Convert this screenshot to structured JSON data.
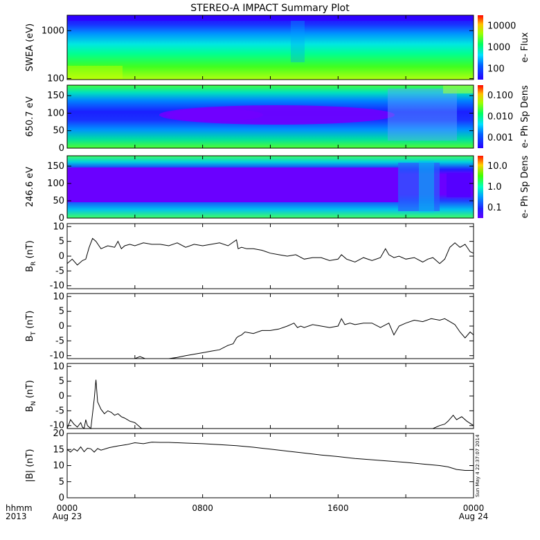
{
  "title": "STEREO-A IMPACT Summary Plot",
  "timestamp": "Sun May  4 22:37:07 2014",
  "x_axis": {
    "row1_label": "hhmm",
    "row2_label": "2013",
    "ticks": [
      {
        "hour": 0,
        "time": "0000",
        "date": "Aug 23"
      },
      {
        "hour": 8,
        "time": "0800",
        "date": ""
      },
      {
        "hour": 16,
        "time": "1600",
        "date": ""
      },
      {
        "hour": 24,
        "time": "0000",
        "date": "Aug 24"
      }
    ]
  },
  "chart_data": [
    {
      "type": "heatmap",
      "name": "swea",
      "ylabel": "SWEA (eV)",
      "ylog": true,
      "ylim": [
        95,
        2100
      ],
      "yticks": [
        {
          "v": 100,
          "l": "100"
        },
        {
          "v": 1000,
          "l": "1000"
        }
      ],
      "colorbar_label": "e- Flux",
      "colorbar_ticks": [
        "100",
        "1000",
        "10000"
      ],
      "colorbar_colors": [
        "#2000ff",
        "#00ffff",
        "#00ff00",
        "#ffff00",
        "#ff0000"
      ],
      "color_stops": [
        "#3a00ff",
        "#00c8ff",
        "#00ff80",
        "#b0ff00"
      ],
      "description_levels": "blue at high energies, cyan-green mid, green-yellow low"
    },
    {
      "type": "heatmap",
      "name": "pad-650",
      "ylabel": "650.7 eV",
      "ylim": [
        0,
        180
      ],
      "yticks": [
        {
          "v": 0,
          "l": "0"
        },
        {
          "v": 50,
          "l": "50"
        },
        {
          "v": 100,
          "l": "100"
        },
        {
          "v": 150,
          "l": "150"
        }
      ],
      "colorbar_label": "e- Ph Sp Dens",
      "colorbar_ticks": [
        "0.001",
        "0.010",
        "0.100"
      ]
    },
    {
      "type": "heatmap",
      "name": "pad-246",
      "ylabel": "246.6 eV",
      "ylim": [
        0,
        180
      ],
      "yticks": [
        {
          "v": 0,
          "l": "0"
        },
        {
          "v": 50,
          "l": "50"
        },
        {
          "v": 100,
          "l": "100"
        },
        {
          "v": 150,
          "l": "150"
        }
      ],
      "colorbar_label": "e- Ph Sp Dens",
      "colorbar_ticks": [
        "0.1",
        "1.0",
        "10.0"
      ]
    },
    {
      "type": "line",
      "name": "br",
      "ylabel": "B",
      "ysub": "R",
      "yunit": " (nT)",
      "ylim": [
        -11,
        11
      ],
      "yticks": [
        -10,
        -5,
        0,
        5,
        10
      ],
      "x": [
        0,
        0.3,
        0.6,
        0.9,
        1.1,
        1.3,
        1.5,
        1.7,
        2.0,
        2.4,
        2.8,
        3.0,
        3.2,
        3.4,
        3.7,
        4.0,
        4.5,
        5.0,
        5.5,
        6.0,
        6.5,
        7.0,
        7.5,
        8.0,
        8.5,
        9.0,
        9.5,
        10.0,
        10.1,
        10.3,
        10.6,
        11.0,
        11.5,
        12.0,
        12.5,
        13.0,
        13.5,
        14.0,
        14.5,
        15.0,
        15.5,
        16.0,
        16.2,
        16.5,
        17.0,
        17.5,
        18.0,
        18.5,
        18.8,
        19.0,
        19.3,
        19.6,
        20.0,
        20.5,
        21.0,
        21.3,
        21.6,
        22.0,
        22.3,
        22.6,
        22.9,
        23.2,
        23.5,
        23.8,
        24.0
      ],
      "y": [
        -2.5,
        -1.0,
        -3.0,
        -1.5,
        -1.0,
        3.0,
        6.0,
        5.0,
        2.5,
        3.5,
        3.0,
        5.0,
        2.5,
        3.5,
        4.0,
        3.5,
        4.5,
        4.0,
        4.0,
        3.5,
        4.5,
        3.0,
        4.0,
        3.5,
        4.0,
        4.5,
        3.5,
        5.5,
        2.5,
        3.0,
        2.5,
        2.5,
        2.0,
        1.0,
        0.5,
        0.0,
        0.5,
        -1.0,
        -0.5,
        -0.5,
        -1.5,
        -1.0,
        0.5,
        -1.0,
        -2.0,
        -0.5,
        -1.5,
        -0.5,
        2.5,
        0.5,
        -0.5,
        0.0,
        -1.0,
        -0.5,
        -2.0,
        -1.0,
        -0.5,
        -2.5,
        -1.0,
        3.0,
        4.5,
        3.0,
        4.0,
        1.5,
        1.0
      ]
    },
    {
      "type": "line",
      "name": "bt",
      "ylabel": "B",
      "ysub": "T",
      "yunit": " (nT)",
      "ylim": [
        -11,
        11
      ],
      "yticks": [
        -10,
        -5,
        0,
        5,
        10
      ],
      "x": [
        0,
        1,
        2,
        3,
        4,
        4.3,
        4.6,
        5,
        6,
        6.5,
        7,
        7.5,
        8,
        8.5,
        9,
        9.5,
        9.8,
        10.0,
        10.1,
        10.3,
        10.5,
        11,
        11.5,
        12,
        12.5,
        13,
        13.4,
        13.6,
        13.8,
        14,
        14.5,
        15,
        15.5,
        16,
        16.2,
        16.4,
        16.7,
        17,
        17.5,
        18,
        18.5,
        19,
        19.3,
        19.6,
        20,
        20.5,
        21,
        21.5,
        22,
        22.3,
        22.6,
        22.9,
        23.2,
        23.5,
        23.8,
        24
      ],
      "y": [
        -11,
        -11,
        -11,
        -11,
        -11,
        -10.3,
        -11,
        -11,
        -11,
        -10.6,
        -10,
        -9.5,
        -9,
        -8.5,
        -8,
        -6.5,
        -6,
        -4,
        -3.5,
        -3,
        -2,
        -2.5,
        -1.5,
        -1.5,
        -1,
        0,
        1,
        -0.5,
        0,
        -0.5,
        0.5,
        0,
        -0.5,
        0,
        2.5,
        0.5,
        1,
        0.5,
        1,
        1,
        -0.5,
        1,
        -3,
        0,
        1,
        2,
        1.5,
        2.5,
        2,
        2.5,
        1.5,
        0.5,
        -2,
        -4,
        -2,
        -3
      ]
    },
    {
      "type": "line",
      "name": "bn",
      "ylabel": "B",
      "ysub": "N",
      "yunit": " (nT)",
      "ylim": [
        -11,
        11
      ],
      "yticks": [
        -10,
        -5,
        0,
        5,
        10
      ],
      "x": [
        0,
        0.2,
        0.4,
        0.6,
        0.8,
        0.9,
        1.0,
        1.1,
        1.2,
        1.4,
        1.6,
        1.7,
        1.8,
        2.0,
        2.2,
        2.4,
        2.6,
        2.8,
        3.0,
        3.2,
        3.4,
        3.7,
        4.0,
        4.2,
        4.4,
        4.6,
        21.6,
        22.0,
        22.3,
        22.5,
        22.8,
        23.0,
        23.3,
        23.6,
        24.0
      ],
      "y": [
        -11,
        -8,
        -9.5,
        -10.5,
        -9,
        -10.5,
        -11,
        -8,
        -10,
        -11,
        -1,
        5.5,
        -2,
        -4.5,
        -6,
        -5,
        -5.5,
        -6.5,
        -6,
        -7,
        -7.5,
        -8.5,
        -9,
        -10,
        -11,
        -11,
        -11,
        -10,
        -9.5,
        -8.5,
        -6.5,
        -8,
        -7,
        -8.5,
        -10
      ]
    },
    {
      "type": "line",
      "name": "bmag",
      "ylabel": "|B| (nT)",
      "ylim": [
        0,
        20
      ],
      "yticks": [
        0,
        5,
        10,
        15,
        20
      ],
      "x": [
        0,
        0.2,
        0.4,
        0.6,
        0.8,
        1.0,
        1.2,
        1.4,
        1.6,
        1.8,
        2.0,
        2.5,
        3.0,
        3.5,
        4.0,
        4.5,
        5.0,
        5.5,
        6.0,
        7.0,
        8.0,
        9.0,
        10.0,
        11.0,
        12.0,
        13.0,
        14.0,
        15.0,
        16.0,
        17.0,
        18.0,
        19.0,
        20.0,
        21.0,
        22.0,
        22.5,
        23.0,
        23.5,
        24.0
      ],
      "y": [
        15,
        14.2,
        15.2,
        14.5,
        15.8,
        14.3,
        15.4,
        15.2,
        14.2,
        15.3,
        14.8,
        15.6,
        16.1,
        16.5,
        17.1,
        16.8,
        17.3,
        17.2,
        17.2,
        17.0,
        16.8,
        16.5,
        16.2,
        15.7,
        15.1,
        14.5,
        13.9,
        13.3,
        12.8,
        12.2,
        11.8,
        11.4,
        11.0,
        10.5,
        10.0,
        9.6,
        8.8,
        8.5,
        8.5
      ]
    }
  ]
}
